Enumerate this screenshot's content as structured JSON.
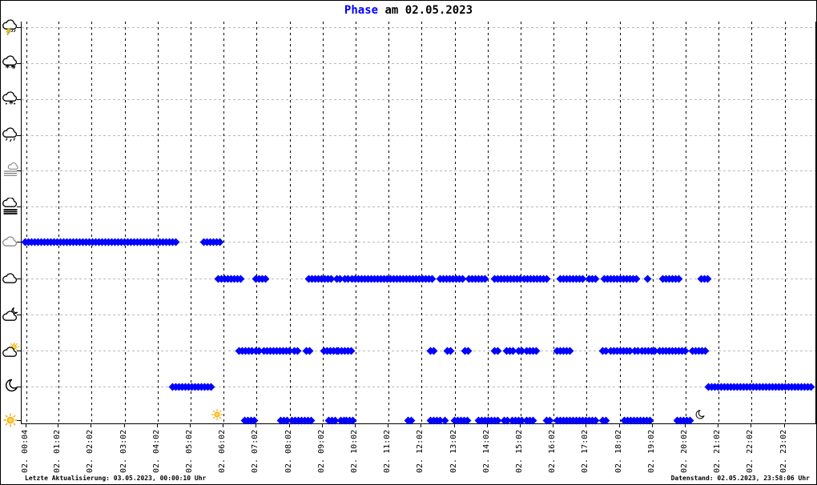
{
  "title": {
    "word": "Phase",
    "rest": " am 02.05.2023"
  },
  "status_bar": {
    "left": "Letzte Aktualisierung: 03.05.2023, 00:00:10 Uhr",
    "right": "Datenstand: 02.05.2023, 23:58:06 Uhr"
  },
  "colors": {
    "accent": "#0000ff",
    "marker": "#0000ff",
    "grid_vertical": "#000000",
    "grid_horizontal": "#b9b9b9",
    "sun": "#f5a800",
    "overcast_cloud": "#8a8a8a"
  },
  "chart_data": {
    "type": "scatter",
    "title": "Phase am 02.05.2023",
    "xlabel": "",
    "ylabel": "",
    "x_axis_hours_range": [
      0,
      24.1
    ],
    "grid": true,
    "marker": "diamond",
    "x_tick_labels": [
      "02. 00:04",
      "02. 01:02",
      "02. 02:02",
      "02. 03:02",
      "02. 04:02",
      "02. 05:02",
      "02. 06:02",
      "02. 07:02",
      "02. 08:02",
      "02. 09:02",
      "02. 10:02",
      "02. 11:02",
      "02. 12:02",
      "02. 13:02",
      "02. 14:02",
      "02. 15:02",
      "02. 16:02",
      "02. 17:02",
      "02. 18:02",
      "02. 19:02",
      "02. 20:02",
      "02. 21:02",
      "02. 22:02",
      "02. 23:02"
    ],
    "y_axis_icons": [
      "thunderstorm-icon",
      "sleet-icon",
      "snow-icon",
      "rain-icon",
      "mist-icon",
      "fog-icon",
      "overcast-icon",
      "cloud-icon",
      "cloud-moon-icon",
      "cloud-sun-icon",
      "moon-icon",
      "sun-icon"
    ],
    "series": [
      {
        "name": "overcast",
        "row_index": 6,
        "segments": [
          [
            0.0,
            4.6
          ],
          [
            5.42,
            5.91
          ]
        ]
      },
      {
        "name": "cloudy",
        "row_index": 7,
        "segments": [
          [
            5.86,
            6.59
          ],
          [
            7.0,
            7.36
          ],
          [
            8.6,
            9.33
          ],
          [
            9.45,
            9.55
          ],
          [
            9.69,
            9.79
          ],
          [
            9.91,
            12.41
          ],
          [
            12.58,
            13.31
          ],
          [
            13.46,
            13.99
          ],
          [
            14.23,
            15.08
          ],
          [
            15.13,
            15.81
          ],
          [
            16.22,
            16.95
          ],
          [
            17.1,
            17.39
          ],
          [
            17.56,
            18.6
          ],
          [
            18.87,
            18.96
          ],
          [
            19.33,
            19.82
          ],
          [
            20.5,
            20.79
          ]
        ]
      },
      {
        "name": "sun-cloud",
        "row_index": 9,
        "segments": [
          [
            6.49,
            6.88
          ],
          [
            7.0,
            7.15
          ],
          [
            7.24,
            8.04
          ],
          [
            8.16,
            8.33
          ],
          [
            8.53,
            8.72
          ],
          [
            9.06,
            9.45
          ],
          [
            9.5,
            9.94
          ],
          [
            12.29,
            12.46
          ],
          [
            12.8,
            12.95
          ],
          [
            13.33,
            13.45
          ],
          [
            14.23,
            14.4
          ],
          [
            14.6,
            14.84
          ],
          [
            14.96,
            15.08
          ],
          [
            15.2,
            15.52
          ],
          [
            16.13,
            16.54
          ],
          [
            17.51,
            17.68
          ],
          [
            17.75,
            18.16
          ],
          [
            18.24,
            18.36
          ],
          [
            18.48,
            18.6
          ],
          [
            18.7,
            19.16
          ],
          [
            19.23,
            19.57
          ],
          [
            19.62,
            20.06
          ],
          [
            20.23,
            20.62
          ]
        ]
      },
      {
        "name": "moon",
        "row_index": 10,
        "segments": [
          [
            4.48,
            5.66
          ],
          [
            20.71,
            23.97
          ]
        ]
      },
      {
        "name": "sun",
        "row_index": 11,
        "segments": [
          [
            6.66,
            7.02
          ],
          [
            7.75,
            8.04
          ],
          [
            8.09,
            8.7
          ],
          [
            9.21,
            9.5
          ],
          [
            9.57,
            9.67
          ],
          [
            9.74,
            9.94
          ],
          [
            11.61,
            11.73
          ],
          [
            12.29,
            12.61
          ],
          [
            12.73,
            12.82
          ],
          [
            13.02,
            13.5
          ],
          [
            13.75,
            14.35
          ],
          [
            14.52,
            14.67
          ],
          [
            14.77,
            15.13
          ],
          [
            15.2,
            15.49
          ],
          [
            15.81,
            15.98
          ],
          [
            16.13,
            17.02
          ],
          [
            17.1,
            17.34
          ],
          [
            17.51,
            17.68
          ],
          [
            18.16,
            18.55
          ],
          [
            18.65,
            18.96
          ],
          [
            19.77,
            20.18
          ]
        ]
      }
    ],
    "annotations": [
      {
        "icon": "sun-icon",
        "hour": 5.86
      },
      {
        "icon": "moon-icon",
        "hour": 20.47
      }
    ]
  }
}
